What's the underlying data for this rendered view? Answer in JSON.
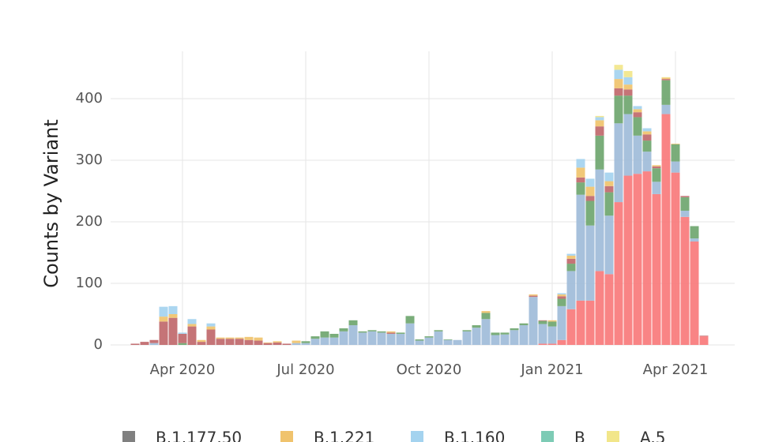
{
  "chart_data": {
    "type": "stacked-bar",
    "y_label": "Counts by Variant",
    "categories": [
      null,
      null,
      null,
      null,
      null,
      "Apr 2020",
      null,
      null,
      null,
      null,
      null,
      null,
      null,
      null,
      null,
      null,
      null,
      null,
      "Jul 2020",
      null,
      null,
      null,
      null,
      null,
      null,
      null,
      null,
      null,
      null,
      null,
      null,
      "Oct 2020",
      null,
      null,
      null,
      null,
      null,
      null,
      null,
      null,
      null,
      null,
      null,
      null,
      "Jan 2021",
      null,
      null,
      null,
      null,
      null,
      null,
      null,
      null,
      null,
      null,
      null,
      null,
      "Apr 2021",
      null,
      null,
      null
    ],
    "ylim": [
      0,
      477
    ],
    "yticks": [
      0,
      100,
      200,
      300,
      400
    ],
    "grid": true,
    "series": [
      {
        "color": "#f8797b",
        "values": [
          0,
          0,
          0,
          0,
          0,
          0,
          0,
          0,
          0,
          0,
          0,
          0,
          0,
          0,
          0,
          0,
          0,
          0,
          0,
          0,
          0,
          0,
          0,
          0,
          0,
          0,
          0,
          0,
          0,
          0,
          0,
          0,
          0,
          0,
          0,
          0,
          0,
          0,
          0,
          0,
          0,
          0,
          0,
          2,
          2,
          8,
          58,
          72,
          72,
          120,
          115,
          232,
          275,
          278,
          282,
          245,
          375,
          280,
          208,
          168,
          14
        ]
      },
      {
        "color": "#9fbcd9",
        "values": [
          0,
          0,
          3,
          0,
          0,
          0,
          0,
          0,
          0,
          0,
          0,
          0,
          0,
          0,
          0,
          0,
          0,
          3,
          3,
          10,
          12,
          12,
          22,
          32,
          20,
          22,
          20,
          18,
          18,
          35,
          7,
          12,
          22,
          8,
          8,
          22,
          28,
          42,
          16,
          17,
          24,
          32,
          78,
          32,
          28,
          55,
          62,
          172,
          122,
          165,
          95,
          128,
          100,
          62,
          32,
          20,
          15,
          18,
          10,
          5,
          0
        ]
      },
      {
        "color": "#6fa66f",
        "values": [
          0,
          0,
          0,
          0,
          0,
          3,
          0,
          0,
          0,
          0,
          0,
          0,
          0,
          0,
          0,
          0,
          0,
          0,
          3,
          4,
          10,
          6,
          5,
          8,
          2,
          2,
          2,
          0,
          2,
          12,
          2,
          2,
          2,
          1,
          0,
          2,
          4,
          10,
          4,
          3,
          3,
          3,
          0,
          5,
          8,
          12,
          12,
          20,
          40,
          55,
          38,
          45,
          30,
          30,
          18,
          22,
          40,
          28,
          22,
          20,
          0
        ]
      },
      {
        "color": "#c0686b",
        "values": [
          2,
          5,
          5,
          38,
          44,
          15,
          30,
          5,
          25,
          10,
          10,
          10,
          8,
          7,
          3,
          4,
          2,
          0,
          0,
          0,
          0,
          0,
          0,
          0,
          0,
          0,
          0,
          2,
          0,
          0,
          0,
          0,
          0,
          0,
          0,
          0,
          0,
          0,
          0,
          0,
          0,
          0,
          2,
          1,
          0,
          4,
          8,
          8,
          8,
          15,
          10,
          12,
          10,
          8,
          10,
          3,
          2,
          0,
          2,
          0,
          1
        ]
      },
      {
        "name": "B.1.177.50",
        "color": "#808080",
        "values": [
          0,
          0,
          0,
          0,
          0,
          0,
          0,
          0,
          0,
          0,
          0,
          0,
          0,
          0,
          0,
          0,
          0,
          0,
          0,
          0,
          0,
          0,
          0,
          0,
          0,
          0,
          0,
          0,
          0,
          0,
          0,
          0,
          0,
          0,
          0,
          0,
          0,
          0,
          0,
          0,
          0,
          0,
          0,
          0,
          0,
          0,
          0,
          0,
          0,
          0,
          0,
          0,
          0,
          0,
          0,
          0,
          0,
          0,
          0,
          0,
          0
        ]
      },
      {
        "name": "B.1.221",
        "color": "#f0c36d",
        "values": [
          0,
          0,
          0,
          8,
          6,
          0,
          4,
          3,
          5,
          2,
          2,
          2,
          5,
          5,
          1,
          2,
          0,
          4,
          0,
          0,
          0,
          0,
          0,
          0,
          0,
          0,
          0,
          2,
          0,
          0,
          0,
          0,
          0,
          0,
          0,
          0,
          0,
          3,
          0,
          0,
          0,
          0,
          2,
          0,
          2,
          3,
          5,
          16,
          15,
          10,
          8,
          15,
          8,
          5,
          5,
          2,
          2,
          1,
          0,
          0,
          0
        ]
      },
      {
        "name": "B.1.160",
        "color": "#a4d3ef",
        "values": [
          0,
          0,
          0,
          16,
          13,
          2,
          8,
          0,
          5,
          0,
          0,
          0,
          0,
          0,
          0,
          0,
          0,
          0,
          0,
          0,
          0,
          0,
          0,
          0,
          0,
          0,
          0,
          0,
          0,
          0,
          0,
          0,
          0,
          0,
          0,
          0,
          0,
          0,
          0,
          0,
          0,
          0,
          0,
          0,
          0,
          2,
          3,
          14,
          13,
          5,
          14,
          15,
          12,
          5,
          5,
          0,
          0,
          0,
          0,
          0,
          0
        ]
      },
      {
        "name": "B",
        "color": "#7dcbb5",
        "values": [
          0,
          0,
          0,
          0,
          0,
          0,
          0,
          0,
          0,
          0,
          0,
          0,
          0,
          0,
          0,
          0,
          0,
          0,
          0,
          0,
          0,
          0,
          0,
          0,
          0,
          0,
          0,
          0,
          0,
          0,
          0,
          0,
          0,
          0,
          0,
          0,
          0,
          0,
          0,
          0,
          0,
          0,
          0,
          0,
          0,
          0,
          0,
          0,
          0,
          0,
          0,
          0,
          0,
          0,
          0,
          0,
          0,
          0,
          0,
          0,
          0
        ]
      },
      {
        "name": "A.5",
        "color": "#f2e68a",
        "values": [
          0,
          0,
          0,
          0,
          0,
          0,
          0,
          0,
          0,
          0,
          0,
          0,
          0,
          0,
          0,
          0,
          0,
          0,
          0,
          0,
          0,
          0,
          0,
          0,
          0,
          0,
          0,
          0,
          0,
          0,
          0,
          0,
          0,
          0,
          0,
          0,
          0,
          0,
          0,
          0,
          0,
          0,
          0,
          0,
          0,
          0,
          0,
          0,
          0,
          2,
          0,
          8,
          10,
          0,
          0,
          0,
          1,
          0,
          0,
          0,
          0
        ]
      }
    ]
  }
}
